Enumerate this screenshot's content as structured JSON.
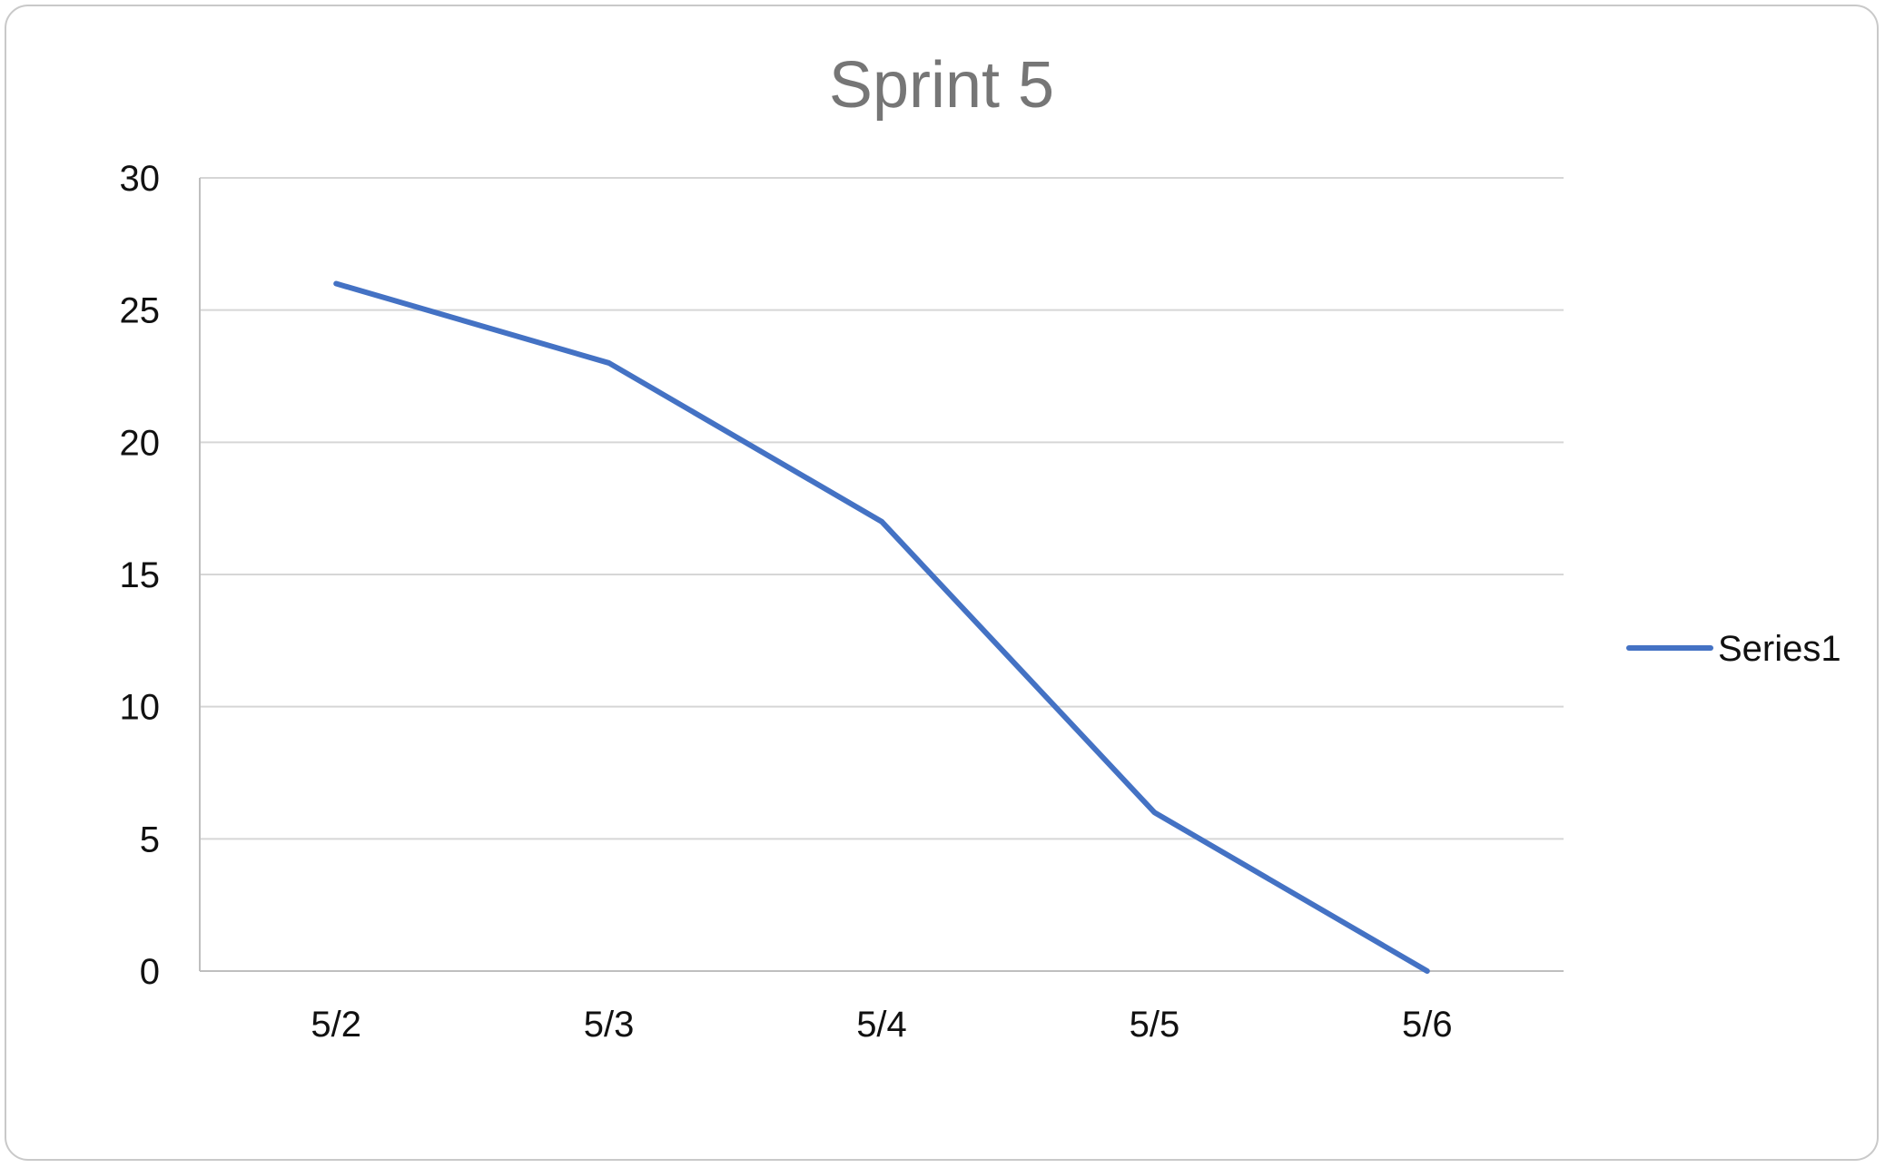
{
  "chart_data": {
    "type": "line",
    "title": "Sprint 5",
    "xlabel": "",
    "ylabel": "",
    "categories": [
      "5/2",
      "5/3",
      "5/4",
      "5/5",
      "5/6"
    ],
    "series": [
      {
        "name": "Series1",
        "values": [
          26,
          23,
          17,
          6,
          0
        ],
        "color": "#4472C4"
      }
    ],
    "ylim": [
      0,
      30
    ],
    "yticks": [
      0,
      5,
      10,
      15,
      20,
      25,
      30
    ],
    "grid": true,
    "legend_position": "right"
  },
  "colors": {
    "gridline": "#d6d6d6",
    "axis": "#bfbfbf",
    "title": "#767676",
    "frame_border": "#c9c9c9"
  }
}
